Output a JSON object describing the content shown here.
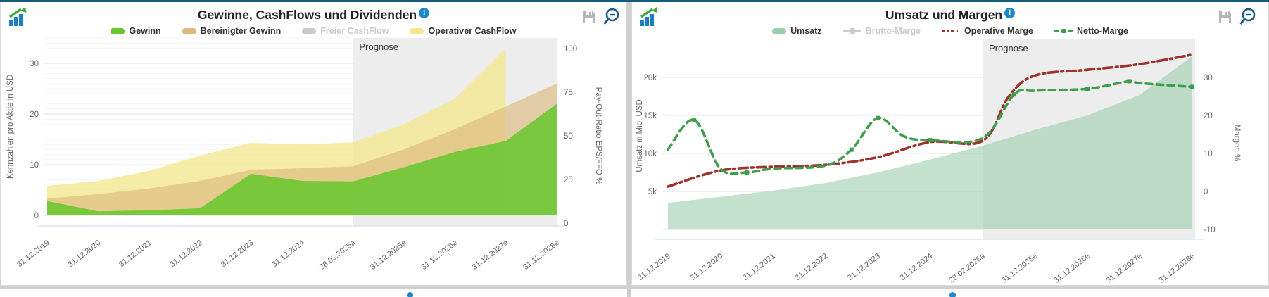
{
  "page": {
    "accent_color": "#15597f",
    "forecast_band_color": "#ededed",
    "icons": [
      "app-chart-logo-icon",
      "info-icon",
      "save-icon",
      "zoom-out-icon"
    ]
  },
  "chart_data": [
    {
      "type": "area",
      "title": "Gewinne, CashFlows und Dividenden",
      "forecast_label": "Prognose",
      "forecast_from": "28.02.2025a",
      "ylabel_left": "Kennzahlen pro Aktie in USD",
      "ylabel_right": "Pay-Out-Ratio EPS/FFO %",
      "ylim_left": [
        0,
        35
      ],
      "yticks_left": [
        0,
        10,
        20,
        30
      ],
      "yticks_right": [
        0,
        25,
        50,
        75,
        100
      ],
      "grid": true,
      "legend_position": "top",
      "categories": [
        "31.12.2019",
        "31.12.2020",
        "31.12.2021",
        "31.12.2022",
        "31.12.2023",
        "31.12.2024",
        "28.02.2025a",
        "31.12.2025e",
        "31.12.2026e",
        "31.12.2027e",
        "31.12.2028e"
      ],
      "series": [
        {
          "name": "Gewinn",
          "type": "area",
          "color": "#66c72e",
          "visible": true,
          "values": [
            2.8,
            0.8,
            1.0,
            1.4,
            8.2,
            6.8,
            6.7,
            9.5,
            12.5,
            14.7,
            22.0
          ]
        },
        {
          "name": "Bereinigter Gewinn",
          "type": "area",
          "color": "#dcba80",
          "visible": true,
          "values": [
            3.3,
            4.2,
            5.3,
            6.8,
            9.0,
            9.3,
            9.7,
            13.0,
            17.0,
            21.5,
            26.0
          ]
        },
        {
          "name": "Freier CashFlow",
          "type": "area",
          "color": "#cbcbcb",
          "visible": false,
          "values": null
        },
        {
          "name": "Operativer CashFlow",
          "type": "area",
          "color": "#f3e891",
          "visible": true,
          "values": [
            5.8,
            6.8,
            8.8,
            11.8,
            14.3,
            14.0,
            14.4,
            18.0,
            23.0,
            33.0,
            null
          ]
        }
      ]
    },
    {
      "type": "mixed",
      "title": "Umsatz und Margen",
      "forecast_label": "Prognose",
      "forecast_from": "28.02.2025a",
      "ylabel_left": "Umsatz in Mio. USD",
      "ylabel_right": "Margen %",
      "ylim_left": [
        0,
        25000
      ],
      "yticks_left": [
        "5k",
        "10k",
        "15k",
        "20k"
      ],
      "ylim_right": [
        -10,
        40
      ],
      "yticks_right": [
        -10,
        0,
        10,
        20,
        30
      ],
      "grid": true,
      "legend_position": "top",
      "categories": [
        "31.12.2019",
        "31.12.2020",
        "31.12.2021",
        "31.12.2022",
        "31.12.2023",
        "31.12.2024",
        "28.02.2025a",
        "31.12.2025e",
        "31.12.2026e",
        "31.12.2027e",
        "31.12.2028e"
      ],
      "series": [
        {
          "name": "Umsatz",
          "type": "area",
          "axis": "left",
          "color": "#9ecfad",
          "visible": true,
          "values": [
            3500,
            4300,
            5100,
            6100,
            7500,
            9200,
            11000,
            13100,
            15000,
            17700,
            22800
          ]
        },
        {
          "name": "Brutto-Marge",
          "type": "line",
          "axis": "right",
          "color": "#cbcbcb",
          "visible": false,
          "values": null
        },
        {
          "name": "Operative Marge",
          "type": "line",
          "axis": "right",
          "color": "#9d342c",
          "dash": "dashdot",
          "visible": true,
          "points": [
            [
              0,
              1.3
            ],
            [
              1,
              5.5
            ],
            [
              2,
              6.5
            ],
            [
              3,
              7.0
            ],
            [
              4,
              9.0
            ],
            [
              5,
              13.0
            ],
            [
              6,
              13.3
            ],
            [
              6.5,
              25.0
            ],
            [
              7,
              30.5
            ],
            [
              8,
              32.0
            ],
            [
              9,
              33.5
            ],
            [
              10,
              36.0
            ]
          ]
        },
        {
          "name": "Netto-Marge",
          "type": "line",
          "axis": "right",
          "color": "#3f9e4b",
          "dash": "dash",
          "visible": true,
          "points": [
            [
              0,
              11.0
            ],
            [
              0.5,
              18.8
            ],
            [
              1,
              6.0
            ],
            [
              1.5,
              5.0
            ],
            [
              2,
              6.0
            ],
            [
              3,
              6.8
            ],
            [
              3.5,
              11.0
            ],
            [
              4,
              19.3
            ],
            [
              4.5,
              14.5
            ],
            [
              5,
              13.5
            ],
            [
              6,
              14.0
            ],
            [
              6.6,
              25.5
            ],
            [
              7,
              26.5
            ],
            [
              8,
              27.0
            ],
            [
              8.8,
              29.0
            ],
            [
              9,
              28.5
            ],
            [
              10,
              27.5
            ]
          ],
          "marker_points": [
            1,
            3,
            6,
            7,
            9,
            11,
            13,
            14,
            16
          ]
        }
      ]
    }
  ]
}
